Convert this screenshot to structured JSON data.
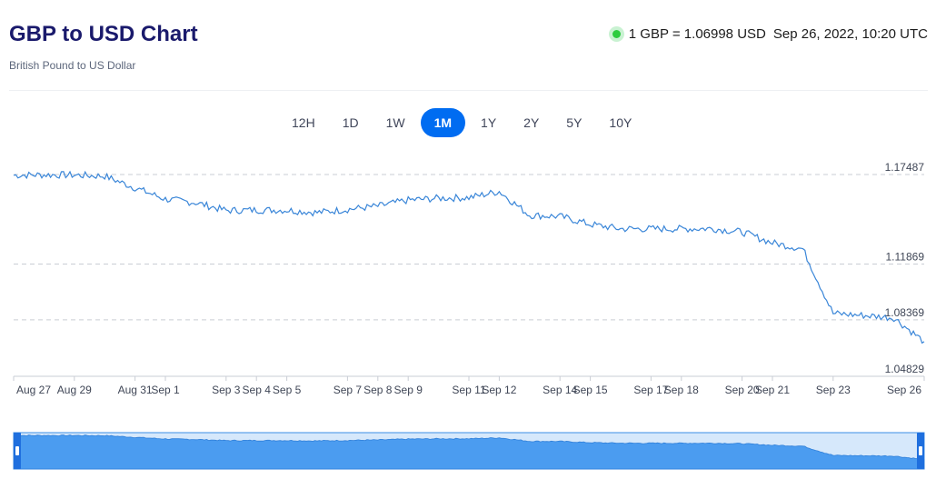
{
  "header": {
    "title": "GBP to USD Chart",
    "subtitle": "British Pound to US Dollar",
    "rate_text": "1 GBP = 1.06998 USD",
    "timestamp": "Sep 26, 2022, 10:20 UTC",
    "live_color": "#2ecc40"
  },
  "tabs": [
    {
      "label": "12H",
      "active": false
    },
    {
      "label": "1D",
      "active": false
    },
    {
      "label": "1W",
      "active": false
    },
    {
      "label": "1M",
      "active": true
    },
    {
      "label": "1Y",
      "active": false
    },
    {
      "label": "2Y",
      "active": false
    },
    {
      "label": "5Y",
      "active": false
    },
    {
      "label": "10Y",
      "active": false
    }
  ],
  "colors": {
    "accent": "#006cf1",
    "line": "#3a86d8",
    "navigator_fill": "#4b9cf0",
    "navigator_handle": "#1f6fde"
  },
  "chart_data": {
    "type": "line",
    "title": "",
    "xlabel": "",
    "ylabel": "",
    "series": [
      {
        "x": [
          "Aug 27",
          "Aug 28",
          "Aug 29",
          "Aug 30",
          "Aug 31",
          "Sep 1",
          "Sep 2",
          "Sep 3",
          "Sep 4",
          "Sep 5",
          "Sep 6",
          "Sep 7",
          "Sep 8",
          "Sep 9",
          "Sep 10",
          "Sep 11",
          "Sep 12",
          "Sep 13",
          "Sep 14",
          "Sep 15",
          "Sep 16",
          "Sep 17",
          "Sep 18",
          "Sep 19",
          "Sep 20",
          "Sep 21",
          "Sep 22",
          "Sep 23",
          "Sep 24",
          "Sep 25",
          "Sep 26"
        ],
        "values": [
          1.1744,
          1.1747,
          1.1745,
          1.1739,
          1.1665,
          1.1594,
          1.1572,
          1.1523,
          1.1526,
          1.1525,
          1.151,
          1.153,
          1.155,
          1.1588,
          1.16,
          1.1604,
          1.1642,
          1.1493,
          1.1486,
          1.1436,
          1.1408,
          1.1408,
          1.1408,
          1.141,
          1.1388,
          1.132,
          1.1282,
          1.0877,
          1.0865,
          1.085,
          1.07
        ]
      }
    ],
    "x_tick_labels": [
      "Aug 27",
      "Aug 29",
      "Aug 31",
      "Sep 1",
      "Sep 3",
      "Sep 4",
      "Sep 5",
      "Sep 7",
      "Sep 8",
      "Sep 9",
      "Sep 11",
      "Sep 12",
      "Sep 14",
      "Sep 15",
      "Sep 17",
      "Sep 18",
      "Sep 20",
      "Sep 21",
      "Sep 23",
      "Sep 26"
    ],
    "y_tick_labels": [
      "1.17487",
      "1.11869",
      "1.08369",
      "1.04829"
    ],
    "y_ticks": [
      1.17487,
      1.11869,
      1.08369,
      1.04829
    ],
    "ylim": [
      1.04829,
      1.17487
    ],
    "grid": true,
    "navigator": true
  }
}
